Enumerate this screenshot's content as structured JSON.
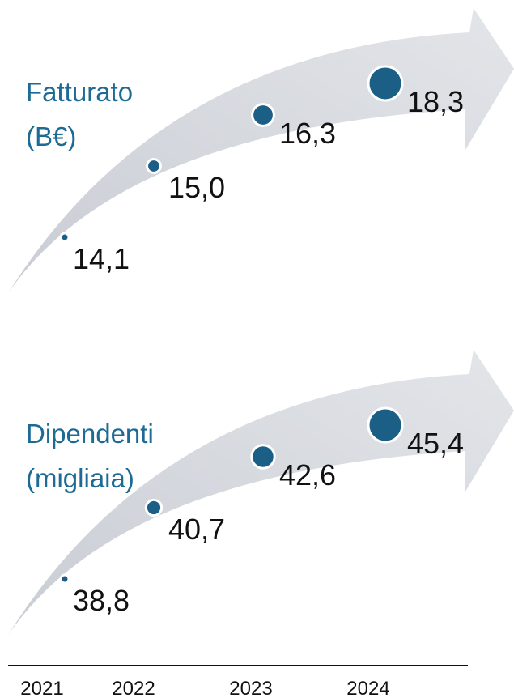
{
  "chart_data": [
    {
      "type": "bubble-arrow",
      "title": "Fatturato",
      "unit": "(B€)",
      "color": "#1b5e86",
      "values": [
        14.1,
        15.0,
        16.3,
        18.3
      ],
      "value_labels": [
        "14,1",
        "15,0",
        "16,3",
        "18,3"
      ]
    },
    {
      "type": "bubble-arrow",
      "title": "Dipendenti",
      "unit": "(migliaia)",
      "color": "#1b5e86",
      "categories": [
        "2021",
        "2022",
        "2023",
        "2024"
      ],
      "values": [
        38.8,
        40.7,
        42.6,
        45.4
      ],
      "value_labels": [
        "38,8",
        "40,7",
        "42,6",
        "45,4"
      ]
    }
  ]
}
